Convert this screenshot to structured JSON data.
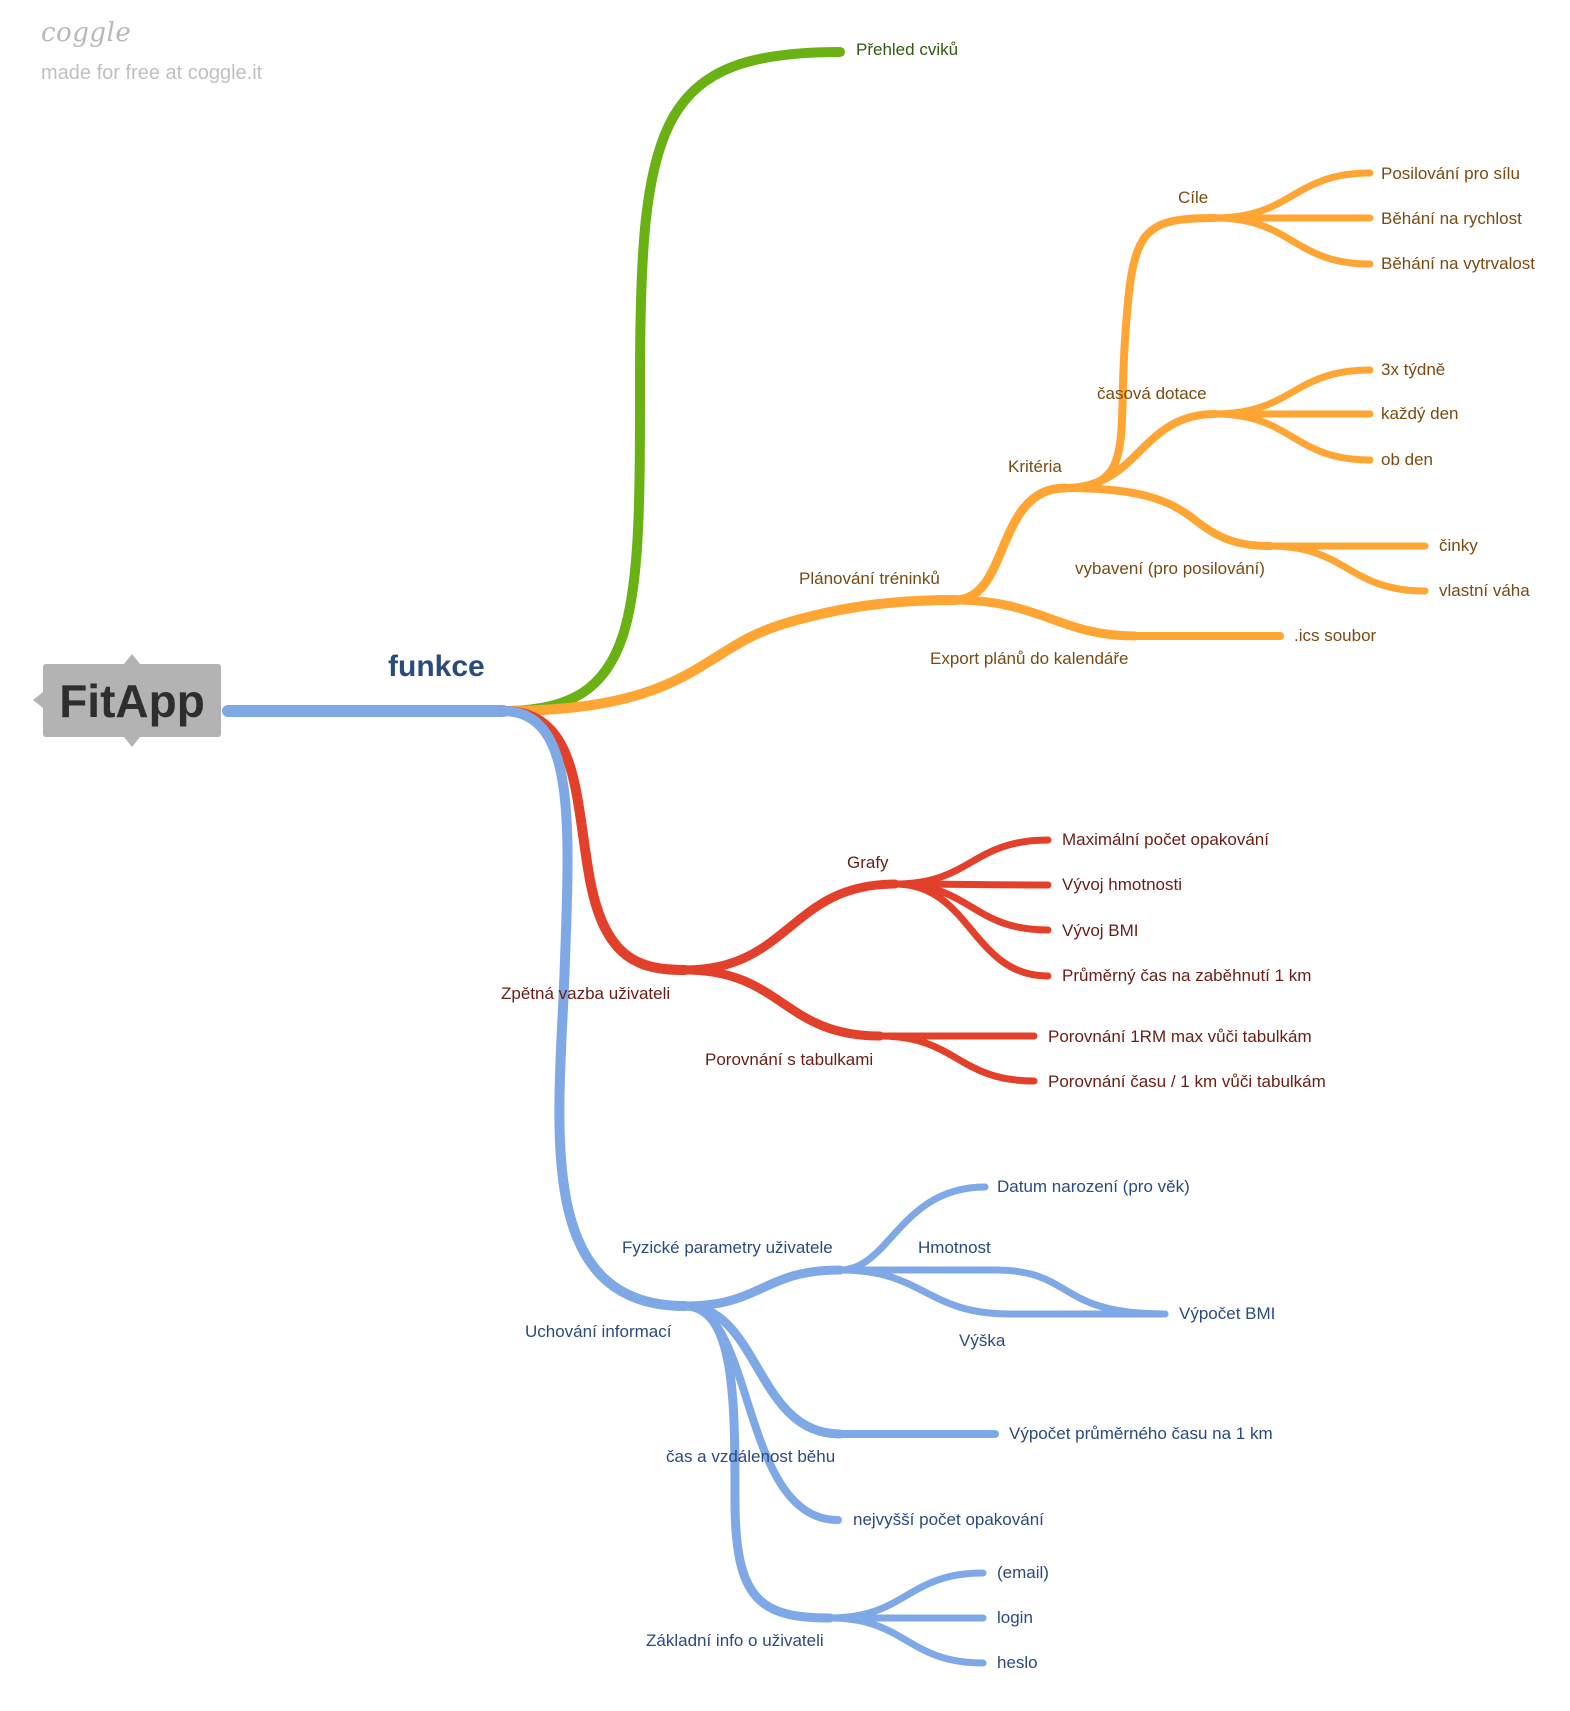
{
  "branding": {
    "logo": "coggle",
    "tagline": "made for free at coggle.it"
  },
  "colors": {
    "green": "#6ab214",
    "orange": "#ffa534",
    "red": "#e2402a",
    "blue": "#7fa8e6",
    "root": "#b3b3b3"
  },
  "root": {
    "label": "FitApp"
  },
  "main": {
    "label": "funkce"
  },
  "green": {
    "label": "Přehled cviků"
  },
  "orange": {
    "planovani": "Plánování tréninků",
    "kriteria": "Kritéria",
    "cile": "Cíle",
    "cile_items": [
      "Posilování pro sílu",
      "Běhání na rychlost",
      "Běhání na vytrvalost"
    ],
    "casova": "časová dotace",
    "casova_items": [
      "3x týdně",
      "každý den",
      "ob den"
    ],
    "vybaveni": "vybavení (pro posilování)",
    "vybaveni_items": [
      "činky",
      "vlastní váha"
    ],
    "export": "Export plánů do kalendáře",
    "ics": ".ics soubor"
  },
  "red": {
    "zpetna": "Zpětná vazba uživateli",
    "grafy": "Grafy",
    "grafy_items": [
      "Maximální počet opakování",
      "Vývoj hmotnosti",
      "Vývoj BMI",
      "Průměrný čas na zaběhnutí 1 km"
    ],
    "porovnani": "Porovnání s tabulkami",
    "porovnani_items": [
      "Porovnání 1RM max vůči tabulkám",
      "Porovnání času / 1 km vůči tabulkám"
    ]
  },
  "blue": {
    "uchovani": "Uchování informací",
    "fyzicke": "Fyzické parametry uživatele",
    "datum": "Datum narození (pro věk)",
    "hmotnost": "Hmotnost",
    "vyska": "Výška",
    "bmi": "Výpočet BMI",
    "cas_beh": "čas a vzdálenost běhu",
    "prumer": "Výpočet průměrného času na 1 km",
    "nejvyssi": "nejvyšší počet opakování",
    "zakladni": "Základní info o uživateli",
    "zakladni_items": [
      "(email)",
      "login",
      "heslo"
    ]
  }
}
